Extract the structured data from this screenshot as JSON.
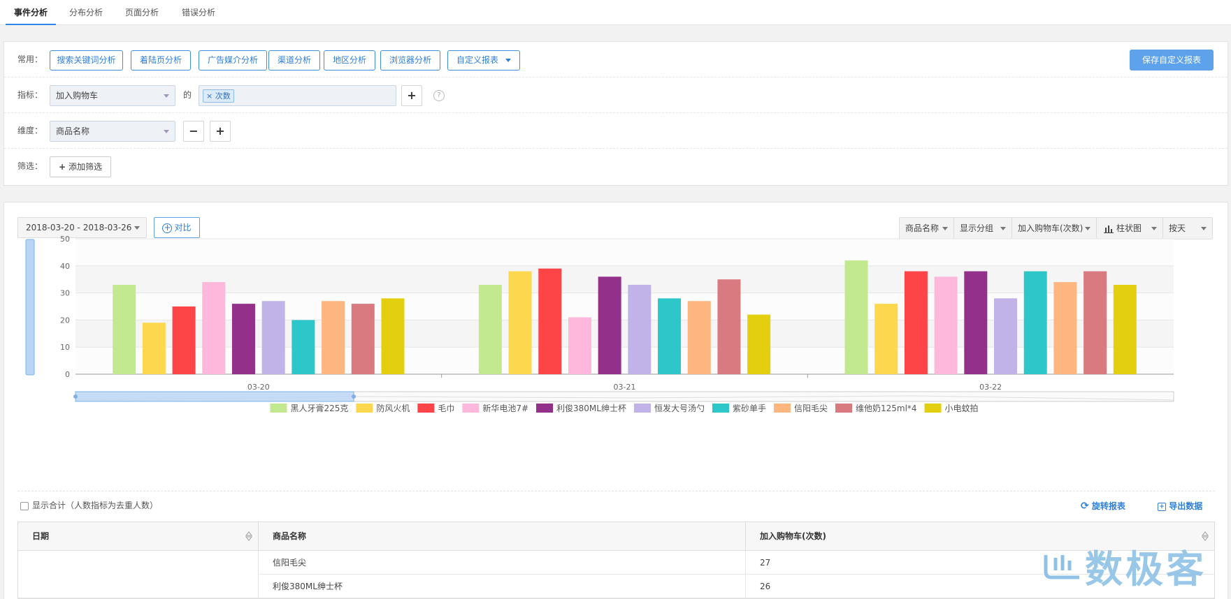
{
  "nav": {
    "tabs": [
      {
        "label": "事件分析",
        "active": true
      },
      {
        "label": "分布分析",
        "active": false
      },
      {
        "label": "页面分析",
        "active": false
      },
      {
        "label": "错误分析",
        "active": false
      }
    ]
  },
  "config": {
    "common_label": "常用：",
    "quick_reports": [
      "搜索关键词分析",
      "着陆页分析",
      "广告媒介分析",
      "渠道分析",
      "地区分析",
      "浏览器分析"
    ],
    "custom_report": "自定义报表",
    "save_label": "保存自定义报表",
    "metric_label": "指标：",
    "metric_value": "加入购物车",
    "of_label": "的",
    "metric_tag": "× 次数",
    "help_glyph": "?",
    "dimension_label": "维度：",
    "dimension_value": "商品名称",
    "filter_label": "筛选：",
    "add_filter": "添加筛选"
  },
  "toolbar": {
    "date_range": "2018-03-20 - 2018-03-26",
    "compare": "对比",
    "options": [
      "商品名称",
      "显示分组",
      "加入购物车(次数)",
      "柱状图",
      "按天"
    ]
  },
  "chart_data": {
    "type": "bar",
    "categories": [
      "03-20",
      "03-21",
      "03-22"
    ],
    "ylim": [
      0,
      50
    ],
    "yticks": [
      0,
      10,
      20,
      30,
      40,
      50
    ],
    "grid": true,
    "legend_position": "bottom",
    "series": [
      {
        "name": "黑人牙膏225克",
        "color": "#c3e990",
        "values": [
          33,
          33,
          42
        ]
      },
      {
        "name": "防风火机",
        "color": "#fdd84e",
        "values": [
          19,
          38,
          26
        ]
      },
      {
        "name": "毛巾",
        "color": "#fd4446",
        "values": [
          25,
          39,
          38
        ]
      },
      {
        "name": "新华电池7#",
        "color": "#fdb8dc",
        "values": [
          34,
          21,
          36
        ]
      },
      {
        "name": "利俊380ML绅士杯",
        "color": "#93308a",
        "values": [
          26,
          36,
          38
        ]
      },
      {
        "name": "恒发大号汤勺",
        "color": "#c1b2e8",
        "values": [
          27,
          33,
          28
        ]
      },
      {
        "name": "紫砂单手",
        "color": "#2ec7c9",
        "values": [
          20,
          28,
          38
        ]
      },
      {
        "name": "信阳毛尖",
        "color": "#feb680",
        "values": [
          27,
          27,
          34
        ]
      },
      {
        "name": "维他奶125ml*4",
        "color": "#d87a80",
        "values": [
          26,
          35,
          38
        ]
      },
      {
        "name": "小电蚊拍",
        "color": "#e3cf10",
        "values": [
          28,
          22,
          33
        ]
      }
    ]
  },
  "table": {
    "show_total": "显示合计（人数指标为去重人数）",
    "rotate": "旋转报表",
    "export": "导出数据",
    "headers": [
      "日期",
      "商品名称",
      "加入购物车(次数)"
    ],
    "rows": [
      {
        "date": "",
        "name": "信阳毛尖",
        "value": "27"
      },
      {
        "date": "",
        "name": "利俊380ML绅士杯",
        "value": "26"
      }
    ]
  },
  "watermark": "数极客"
}
